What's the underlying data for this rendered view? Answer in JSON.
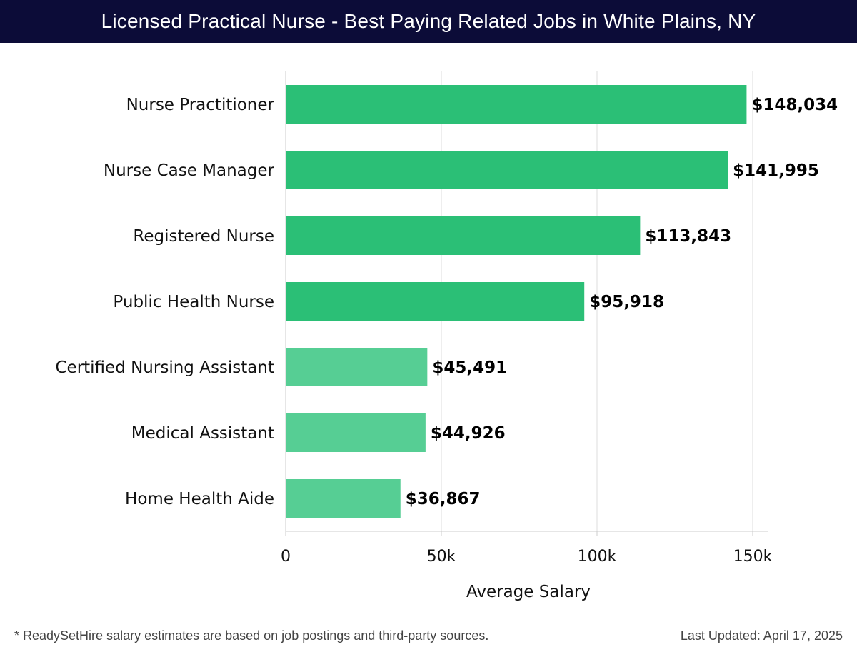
{
  "header": {
    "title": "Licensed Practical Nurse - Best Paying Related Jobs in White Plains, NY"
  },
  "chart_data": {
    "type": "bar",
    "orientation": "horizontal",
    "categories": [
      "Nurse Practitioner",
      "Nurse Case Manager",
      "Registered Nurse",
      "Public Health Nurse",
      "Certified Nursing Assistant",
      "Medical Assistant",
      "Home Health Aide"
    ],
    "values": [
      148034,
      141995,
      113843,
      95918,
      45491,
      44926,
      36867
    ],
    "value_labels": [
      "$148,034",
      "$141,995",
      "$113,843",
      "$95,918",
      "$45,491",
      "$44,926",
      "$36,867"
    ],
    "xlabel": "Average Salary",
    "ylabel": "",
    "xlim": [
      0,
      155000
    ],
    "x_ticks": [
      0,
      50000,
      100000,
      150000
    ],
    "x_tick_labels": [
      "0",
      "50k",
      "100k",
      "150k"
    ],
    "grid": "vertical",
    "legend": "none",
    "colors": {
      "high": "#2bbf76",
      "low": "#56ce94",
      "grid": "#dddddd",
      "axis": "#cccccc",
      "label": "#111111"
    }
  },
  "footer": {
    "note": "* ReadySetHire salary estimates are based on job postings and third-party sources.",
    "updated": "Last Updated: April 17, 2025"
  }
}
